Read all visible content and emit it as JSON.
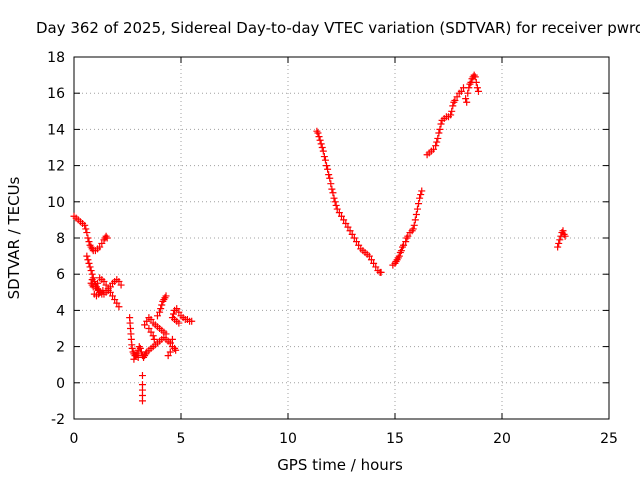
{
  "chart_data": {
    "type": "scatter",
    "title": "Day 362 of 2025, Sidereal Day-to-day VTEC variation (SDTVAR) for receiver pwro",
    "xlabel": "GPS time / hours",
    "ylabel": "SDTVAR / TECUs",
    "xlim": [
      0,
      25
    ],
    "ylim": [
      -2,
      18
    ],
    "xticks": [
      0,
      5,
      10,
      15,
      20,
      25
    ],
    "yticks": [
      -2,
      0,
      2,
      4,
      6,
      8,
      10,
      12,
      14,
      16,
      18
    ],
    "grid": true,
    "marker": "+",
    "color": "#ff0000",
    "series": [
      {
        "name": "SDTVAR",
        "points": [
          [
            0.0,
            9.2
          ],
          [
            0.1,
            9.1
          ],
          [
            0.2,
            9.0
          ],
          [
            0.3,
            8.9
          ],
          [
            0.4,
            8.8
          ],
          [
            0.5,
            8.7
          ],
          [
            0.55,
            8.5
          ],
          [
            0.6,
            8.3
          ],
          [
            0.65,
            8.0
          ],
          [
            0.7,
            7.8
          ],
          [
            0.75,
            7.6
          ],
          [
            0.8,
            7.5
          ],
          [
            0.85,
            7.4
          ],
          [
            0.9,
            7.3
          ],
          [
            1.0,
            7.3
          ],
          [
            1.1,
            7.4
          ],
          [
            1.2,
            7.5
          ],
          [
            1.3,
            7.7
          ],
          [
            1.4,
            7.9
          ],
          [
            1.45,
            8.0
          ],
          [
            1.5,
            8.1
          ],
          [
            1.55,
            8.0
          ],
          [
            0.6,
            7.0
          ],
          [
            0.65,
            6.8
          ],
          [
            0.7,
            6.6
          ],
          [
            0.75,
            6.4
          ],
          [
            0.8,
            6.2
          ],
          [
            0.85,
            6.0
          ],
          [
            0.9,
            5.8
          ],
          [
            0.95,
            5.6
          ],
          [
            1.0,
            5.4
          ],
          [
            1.05,
            5.3
          ],
          [
            1.1,
            5.2
          ],
          [
            1.15,
            5.1
          ],
          [
            1.2,
            5.0
          ],
          [
            1.3,
            4.9
          ],
          [
            1.4,
            4.9
          ],
          [
            1.5,
            5.0
          ],
          [
            1.6,
            5.1
          ],
          [
            1.7,
            5.3
          ],
          [
            1.8,
            5.5
          ],
          [
            1.9,
            5.6
          ],
          [
            2.0,
            5.7
          ],
          [
            2.1,
            5.6
          ],
          [
            2.2,
            5.4
          ],
          [
            0.8,
            5.5
          ],
          [
            0.85,
            5.4
          ],
          [
            0.9,
            5.3
          ],
          [
            1.0,
            5.3
          ],
          [
            1.1,
            5.5
          ],
          [
            1.2,
            5.8
          ],
          [
            1.3,
            5.7
          ],
          [
            1.4,
            5.6
          ],
          [
            1.5,
            5.4
          ],
          [
            1.6,
            5.2
          ],
          [
            1.7,
            5.0
          ],
          [
            1.8,
            4.8
          ],
          [
            1.9,
            4.6
          ],
          [
            2.0,
            4.4
          ],
          [
            2.1,
            4.2
          ],
          [
            0.85,
            5.7
          ],
          [
            0.95,
            4.9
          ],
          [
            1.05,
            4.8
          ],
          [
            1.15,
            4.9
          ],
          [
            1.25,
            5.0
          ],
          [
            1.35,
            5.1
          ],
          [
            2.6,
            3.6
          ],
          [
            2.62,
            3.3
          ],
          [
            2.64,
            3.0
          ],
          [
            2.66,
            2.7
          ],
          [
            2.68,
            2.4
          ],
          [
            2.7,
            2.1
          ],
          [
            2.72,
            1.9
          ],
          [
            2.76,
            1.7
          ],
          [
            2.8,
            1.6
          ],
          [
            2.85,
            1.5
          ],
          [
            2.9,
            1.5
          ],
          [
            2.95,
            1.6
          ],
          [
            3.0,
            1.8
          ],
          [
            3.05,
            2.0
          ],
          [
            3.1,
            1.9
          ],
          [
            3.15,
            1.7
          ],
          [
            3.2,
            1.5
          ],
          [
            3.25,
            1.4
          ],
          [
            3.3,
            1.5
          ],
          [
            3.35,
            1.6
          ],
          [
            3.4,
            1.7
          ],
          [
            3.5,
            1.8
          ],
          [
            3.6,
            1.9
          ],
          [
            3.7,
            2.0
          ],
          [
            3.8,
            2.1
          ],
          [
            3.9,
            2.2
          ],
          [
            4.0,
            2.3
          ],
          [
            4.1,
            2.4
          ],
          [
            4.2,
            2.5
          ],
          [
            4.3,
            2.4
          ],
          [
            4.4,
            2.3
          ],
          [
            4.5,
            2.2
          ],
          [
            4.6,
            2.0
          ],
          [
            4.7,
            1.9
          ],
          [
            4.75,
            1.8
          ],
          [
            3.2,
            0.4
          ],
          [
            3.2,
            -0.1
          ],
          [
            3.2,
            -0.4
          ],
          [
            3.2,
            -0.7
          ],
          [
            3.2,
            -1.0
          ],
          [
            2.8,
            1.3
          ],
          [
            3.0,
            1.4
          ],
          [
            3.4,
            3.4
          ],
          [
            3.5,
            3.6
          ],
          [
            3.6,
            3.5
          ],
          [
            3.7,
            3.3
          ],
          [
            3.8,
            3.2
          ],
          [
            3.9,
            3.1
          ],
          [
            4.0,
            3.0
          ],
          [
            4.1,
            2.9
          ],
          [
            4.2,
            2.8
          ],
          [
            4.3,
            2.7
          ],
          [
            3.3,
            3.2
          ],
          [
            3.5,
            3.0
          ],
          [
            3.6,
            2.8
          ],
          [
            3.7,
            2.6
          ],
          [
            3.75,
            2.4
          ],
          [
            3.9,
            3.7
          ],
          [
            4.0,
            3.9
          ],
          [
            4.05,
            4.1
          ],
          [
            4.1,
            4.3
          ],
          [
            4.15,
            4.5
          ],
          [
            4.2,
            4.6
          ],
          [
            4.25,
            4.7
          ],
          [
            4.3,
            4.8
          ],
          [
            4.4,
            1.5
          ],
          [
            4.5,
            1.7
          ],
          [
            4.5,
            2.2
          ],
          [
            4.6,
            2.4
          ],
          [
            4.6,
            3.6
          ],
          [
            4.65,
            3.8
          ],
          [
            4.7,
            4.0
          ],
          [
            4.8,
            4.1
          ],
          [
            4.9,
            3.9
          ],
          [
            5.0,
            3.7
          ],
          [
            5.1,
            3.6
          ],
          [
            5.2,
            3.5
          ],
          [
            5.3,
            3.5
          ],
          [
            5.4,
            3.4
          ],
          [
            5.5,
            3.4
          ],
          [
            4.7,
            3.5
          ],
          [
            4.8,
            3.4
          ],
          [
            4.9,
            3.3
          ],
          [
            11.35,
            13.9
          ],
          [
            11.4,
            13.8
          ],
          [
            11.45,
            13.6
          ],
          [
            11.5,
            13.4
          ],
          [
            11.55,
            13.2
          ],
          [
            11.6,
            13.0
          ],
          [
            11.65,
            12.8
          ],
          [
            11.7,
            12.5
          ],
          [
            11.75,
            12.3
          ],
          [
            11.8,
            12.0
          ],
          [
            11.85,
            11.8
          ],
          [
            11.9,
            11.5
          ],
          [
            11.95,
            11.3
          ],
          [
            12.0,
            11.0
          ],
          [
            12.05,
            10.7
          ],
          [
            12.1,
            10.5
          ],
          [
            12.15,
            10.2
          ],
          [
            12.2,
            10.0
          ],
          [
            12.25,
            9.8
          ],
          [
            12.3,
            9.6
          ],
          [
            12.4,
            9.4
          ],
          [
            12.5,
            9.2
          ],
          [
            12.6,
            9.0
          ],
          [
            12.7,
            8.8
          ],
          [
            12.8,
            8.6
          ],
          [
            12.9,
            8.4
          ],
          [
            13.0,
            8.2
          ],
          [
            13.1,
            8.0
          ],
          [
            13.2,
            7.8
          ],
          [
            13.3,
            7.6
          ],
          [
            13.4,
            7.4
          ],
          [
            13.5,
            7.3
          ],
          [
            13.6,
            7.2
          ],
          [
            13.7,
            7.1
          ],
          [
            13.8,
            7.0
          ],
          [
            13.9,
            6.8
          ],
          [
            14.0,
            6.6
          ],
          [
            14.1,
            6.4
          ],
          [
            14.2,
            6.2
          ],
          [
            14.3,
            6.1
          ],
          [
            14.35,
            6.1
          ],
          [
            14.9,
            6.5
          ],
          [
            15.0,
            6.6
          ],
          [
            15.05,
            6.7
          ],
          [
            15.1,
            6.8
          ],
          [
            15.15,
            6.9
          ],
          [
            15.2,
            7.0
          ],
          [
            15.25,
            7.2
          ],
          [
            15.3,
            7.3
          ],
          [
            15.35,
            7.5
          ],
          [
            15.4,
            7.6
          ],
          [
            15.5,
            7.8
          ],
          [
            15.55,
            8.0
          ],
          [
            15.6,
            8.1
          ],
          [
            15.7,
            8.3
          ],
          [
            15.8,
            8.4
          ],
          [
            15.85,
            8.5
          ],
          [
            15.9,
            8.7
          ],
          [
            15.95,
            9.0
          ],
          [
            16.0,
            9.3
          ],
          [
            16.05,
            9.6
          ],
          [
            16.1,
            9.9
          ],
          [
            16.15,
            10.2
          ],
          [
            16.2,
            10.4
          ],
          [
            16.25,
            10.6
          ],
          [
            16.5,
            12.6
          ],
          [
            16.6,
            12.7
          ],
          [
            16.7,
            12.8
          ],
          [
            16.8,
            12.9
          ],
          [
            16.9,
            13.1
          ],
          [
            16.95,
            13.3
          ],
          [
            17.0,
            13.5
          ],
          [
            17.05,
            13.8
          ],
          [
            17.1,
            14.0
          ],
          [
            17.15,
            14.3
          ],
          [
            17.2,
            14.5
          ],
          [
            17.3,
            14.6
          ],
          [
            17.4,
            14.7
          ],
          [
            17.5,
            14.7
          ],
          [
            17.6,
            14.8
          ],
          [
            17.65,
            15.0
          ],
          [
            17.7,
            15.3
          ],
          [
            17.75,
            15.5
          ],
          [
            17.8,
            15.6
          ],
          [
            17.9,
            15.8
          ],
          [
            18.0,
            16.0
          ],
          [
            18.1,
            16.1
          ],
          [
            18.2,
            16.3
          ],
          [
            18.3,
            15.7
          ],
          [
            18.35,
            15.5
          ],
          [
            18.4,
            16.0
          ],
          [
            18.45,
            16.3
          ],
          [
            18.5,
            16.5
          ],
          [
            18.55,
            16.6
          ],
          [
            18.6,
            16.8
          ],
          [
            18.65,
            16.9
          ],
          [
            18.7,
            17.0
          ],
          [
            18.75,
            16.9
          ],
          [
            18.8,
            16.6
          ],
          [
            18.85,
            16.3
          ],
          [
            18.9,
            16.1
          ],
          [
            22.6,
            7.5
          ],
          [
            22.65,
            7.7
          ],
          [
            22.7,
            7.9
          ],
          [
            22.75,
            8.1
          ],
          [
            22.8,
            8.3
          ],
          [
            22.85,
            8.4
          ],
          [
            22.9,
            8.2
          ],
          [
            22.95,
            8.1
          ]
        ]
      }
    ]
  }
}
